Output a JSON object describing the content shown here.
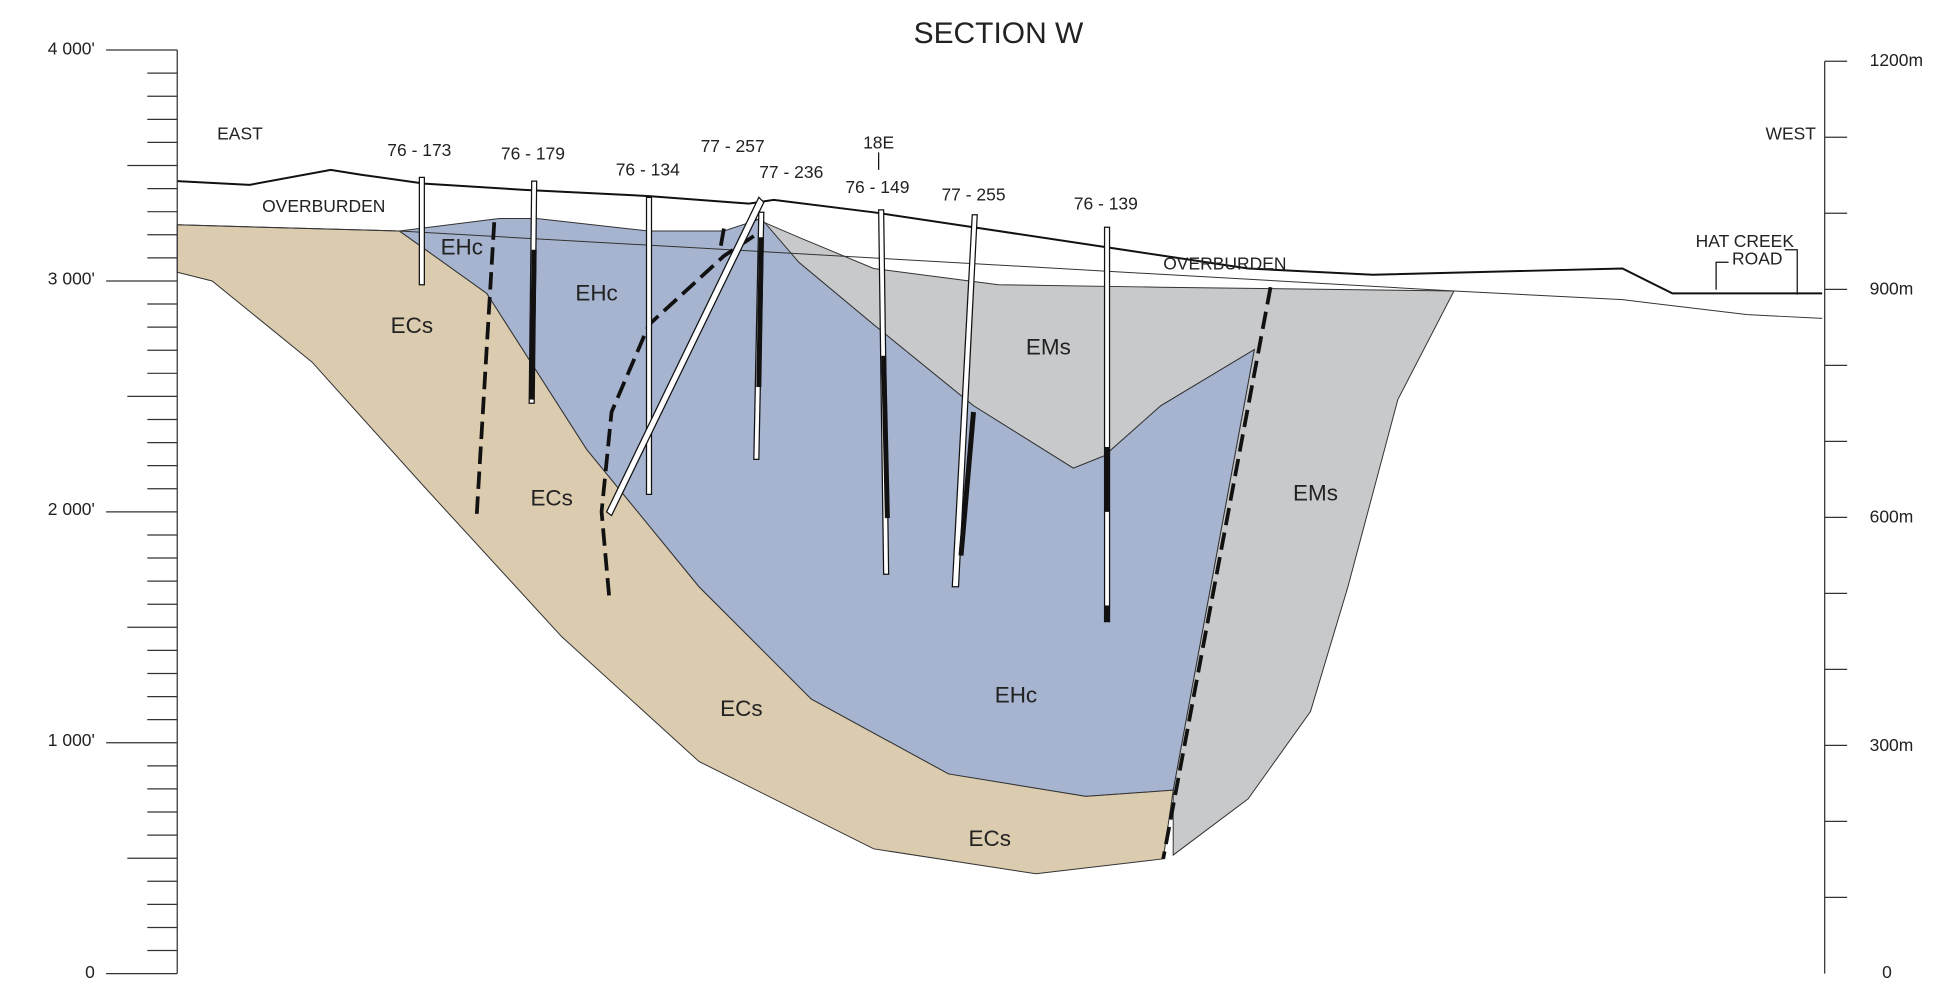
{
  "title": "SECTION W",
  "left_axis": {
    "labels": [
      "4 000'",
      "3 000'",
      "2 000'",
      "1 000'",
      "0"
    ]
  },
  "right_axis": {
    "labels": [
      "1200m",
      "900m",
      "600m",
      "300m",
      "0"
    ]
  },
  "directions": {
    "east": "EAST",
    "west": "WEST"
  },
  "annotations": {
    "overburden_left": "OVERBURDEN",
    "overburden_right": "OVERBURDEN",
    "road_line1": "HAT CREEK",
    "road_line2": "ROAD"
  },
  "drill_holes": [
    "76 - 173",
    "76 - 179",
    "76 - 134",
    "77 - 257",
    "77 - 236",
    "18E",
    "76 - 149",
    "77 - 255",
    "76 - 139"
  ],
  "units": [
    "EHc",
    "EHc",
    "EHc",
    "ECs",
    "ECs",
    "ECs",
    "ECs",
    "EMs",
    "EMs"
  ]
}
